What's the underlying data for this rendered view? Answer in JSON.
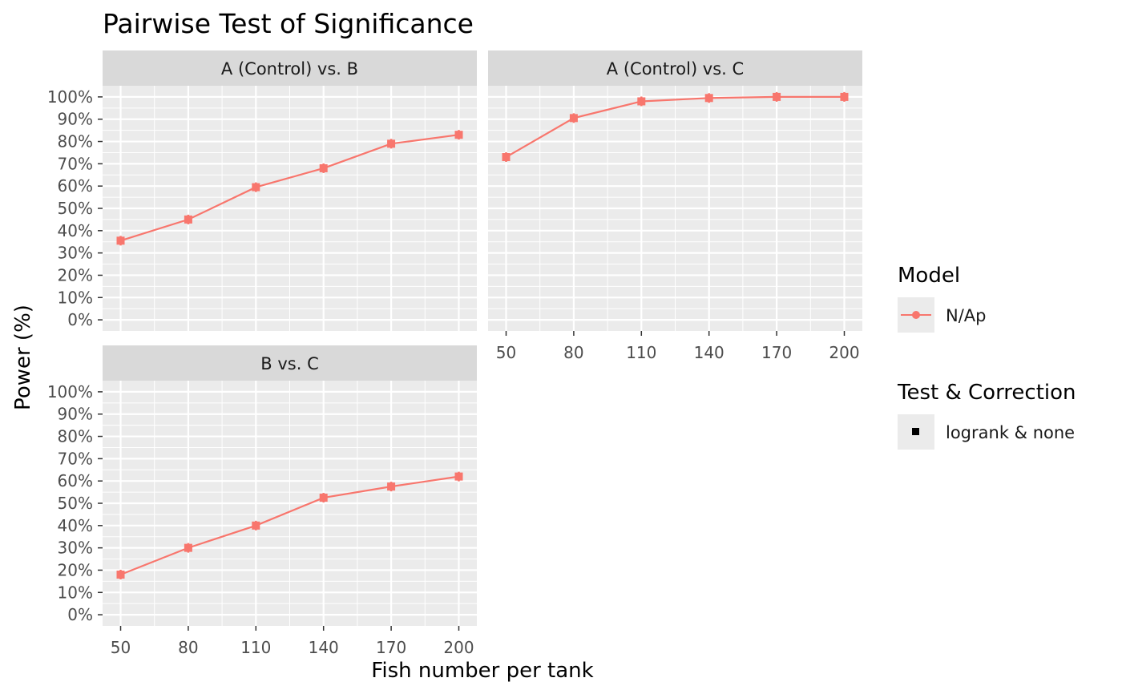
{
  "chart_data": {
    "type": "line",
    "title": "Pairwise Test of Significance",
    "xlabel": "Fish number per tank",
    "ylabel": "Power (%)",
    "x": [
      50,
      80,
      110,
      140,
      170,
      200
    ],
    "x_tick_labels": [
      "50",
      "80",
      "110",
      "140",
      "170",
      "200"
    ],
    "y_tick_labels": [
      "0%",
      "10%",
      "20%",
      "30%",
      "40%",
      "50%",
      "60%",
      "70%",
      "80%",
      "90%",
      "100%"
    ],
    "xlim": [
      42,
      208
    ],
    "ylim": [
      -5,
      105
    ],
    "grid": true,
    "series_color": "#F8766D",
    "legend_placement": "right",
    "panels": [
      {
        "label": "A (Control) vs. B",
        "values": [
          35.5,
          45,
          59.5,
          68,
          79,
          83
        ]
      },
      {
        "label": "A (Control) vs. C",
        "values": [
          73,
          90.5,
          98,
          99.5,
          100,
          100
        ]
      },
      {
        "label": "B vs. C",
        "values": [
          18,
          30,
          40,
          52.5,
          57.5,
          62
        ]
      }
    ],
    "legends": [
      {
        "title": "Model",
        "items": [
          {
            "label": "N/Ap",
            "key": "line-point",
            "color": "#F8766D"
          }
        ]
      },
      {
        "title": "Test & Correction",
        "items": [
          {
            "label": "logrank & none",
            "key": "square",
            "color": "#000000"
          }
        ]
      }
    ]
  }
}
